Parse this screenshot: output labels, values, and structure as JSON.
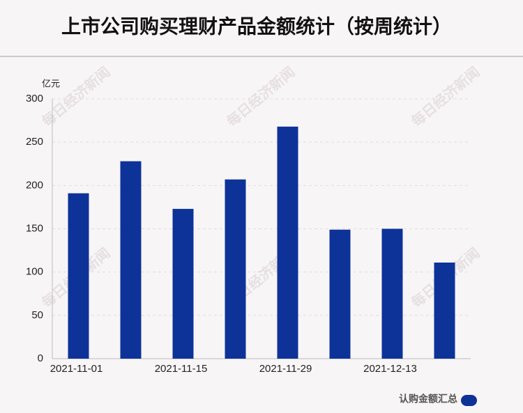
{
  "chart_data": {
    "type": "bar",
    "title": "上市公司购买理财产品金额统计（按周统计）",
    "unit_label": "亿元",
    "watermark": "每日经济新闻",
    "categories": [
      "2021-11-01",
      null,
      "2021-11-15",
      null,
      "2021-11-29",
      null,
      "2021-12-13",
      null
    ],
    "series": [
      {
        "name": "认购金额汇总",
        "color": "#0d3399",
        "values": [
          191,
          228,
          173,
          207,
          268,
          149,
          150,
          111
        ]
      }
    ],
    "ylim": [
      0,
      300
    ],
    "yticks": [
      0,
      50,
      100,
      150,
      200,
      250,
      300
    ],
    "grid": true,
    "legend": "bottom-right"
  }
}
